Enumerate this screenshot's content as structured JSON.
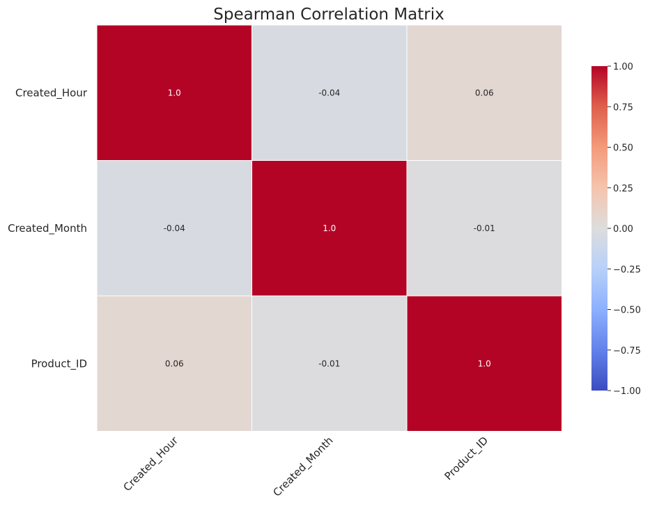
{
  "chart_data": {
    "type": "heatmap",
    "title": "Spearman Correlation Matrix",
    "x_labels": [
      "Created_Hour",
      "Created_Month",
      "Product_ID"
    ],
    "y_labels": [
      "Created_Hour",
      "Created_Month",
      "Product_ID"
    ],
    "values": [
      [
        1.0,
        -0.04,
        0.06
      ],
      [
        -0.04,
        1.0,
        -0.01
      ],
      [
        0.06,
        -0.01,
        1.0
      ]
    ],
    "annotations": [
      [
        "1.0",
        "-0.04",
        "0.06"
      ],
      [
        "-0.04",
        "1.0",
        "-0.01"
      ],
      [
        "0.06",
        "-0.01",
        "1.0"
      ]
    ],
    "colormap": "coolwarm",
    "vmin": -1.0,
    "vmax": 1.0,
    "colorbar_ticks": [
      1.0,
      0.75,
      0.5,
      0.25,
      0.0,
      -0.25,
      -0.5,
      -0.75,
      -1.0
    ],
    "colorbar_tick_labels": [
      "1.00",
      "0.75",
      "0.50",
      "0.25",
      "0.00",
      "−0.25",
      "−0.50",
      "−0.75",
      "−1.00"
    ],
    "colors": {
      "cell_border": "#ffffff",
      "text": "#262626"
    }
  }
}
